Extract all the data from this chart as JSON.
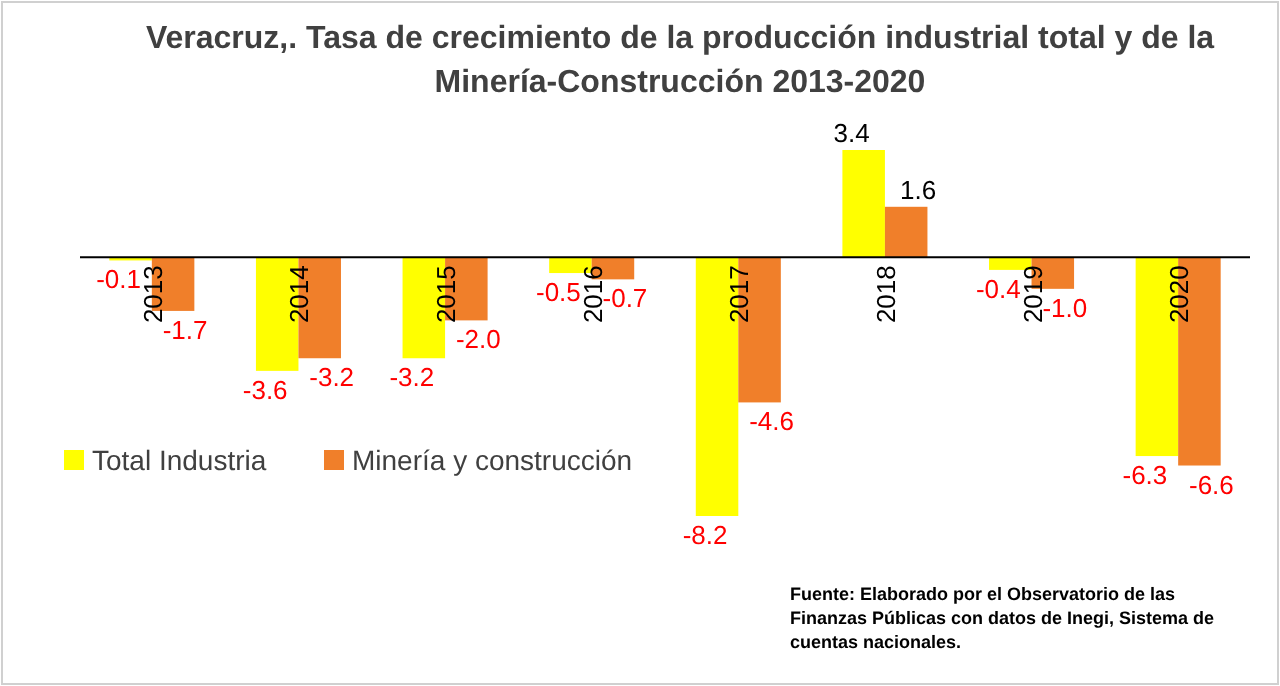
{
  "chart_data": {
    "type": "bar",
    "title": "Veracruz,. Tasa de crecimiento de la producción industrial total y de la Minería-Construcción 2013-2020",
    "categories": [
      "2013",
      "2014",
      "2015",
      "2016",
      "2017",
      "2018",
      "2019",
      "2020"
    ],
    "series": [
      {
        "name": "Total Industria",
        "color": "#ffff00",
        "values": [
          -0.1,
          -3.6,
          -3.2,
          -0.5,
          -8.2,
          3.4,
          -0.4,
          -6.3
        ],
        "value_labels": [
          "-0.1",
          "-3.6",
          "-3.2",
          "-0.5",
          "-8.2",
          "3.4",
          "-0.4",
          "-6.3"
        ]
      },
      {
        "name": "Minería y construcción",
        "color": "#f07f2a",
        "values": [
          -1.7,
          -3.2,
          -2,
          -0.7,
          -4.6,
          1.6,
          -1,
          -6.6
        ],
        "value_labels": [
          "-1.7",
          "-3.2",
          "-2.0",
          "-0.7",
          "-4.6",
          "1.6",
          "-1.0",
          "-6.6"
        ]
      }
    ],
    "legend": "left",
    "annotations": [
      "Fuente: Elaborado por el Observatorio de las Finanzas Públicas con datos de Inegi, Sistema de cuentas nacionales."
    ]
  }
}
